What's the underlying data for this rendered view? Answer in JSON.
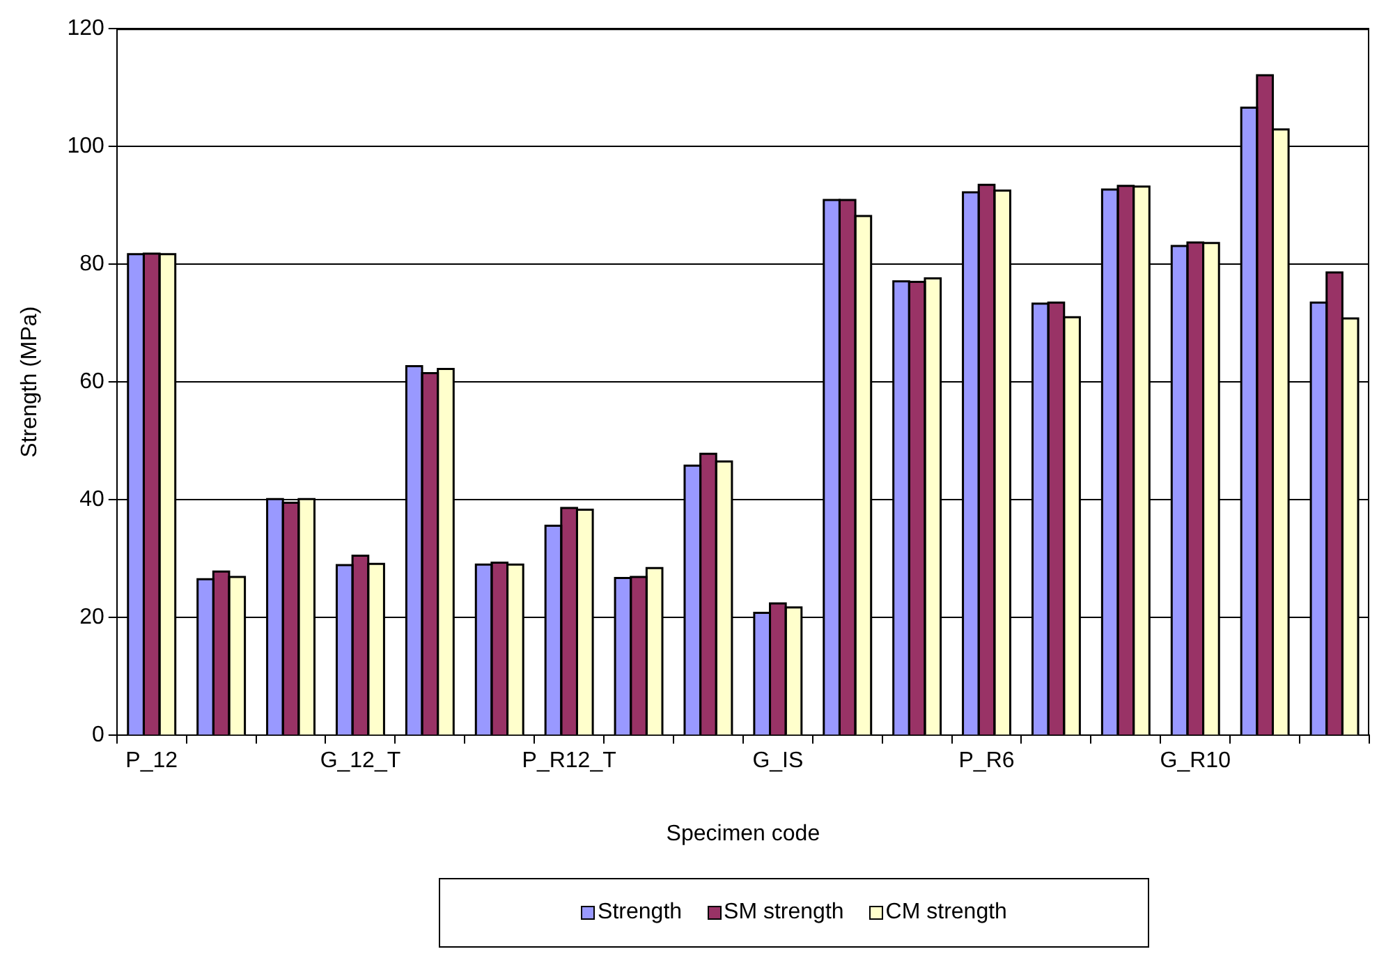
{
  "chart_data": {
    "type": "bar",
    "xlabel": "Specimen code",
    "ylabel": "Strength (MPa)",
    "categories": [
      "P_12",
      null,
      null,
      "G_12_T",
      null,
      null,
      "P_R12_T",
      null,
      null,
      "G_IS",
      null,
      null,
      "P_R6",
      null,
      null,
      "G_R10",
      null,
      null
    ],
    "series": [
      {
        "name": "Strength",
        "color": "#9999ff",
        "values": [
          81.7,
          26.5,
          40.1,
          28.9,
          62.7,
          29.0,
          35.6,
          26.7,
          45.8,
          20.8,
          90.9,
          77.1,
          92.2,
          73.3,
          92.7,
          83.1,
          106.6,
          73.5
        ]
      },
      {
        "name": "SM strength",
        "color": "#993366",
        "values": [
          81.8,
          27.8,
          39.5,
          30.5,
          61.5,
          29.3,
          38.6,
          26.9,
          47.8,
          22.4,
          90.9,
          77.0,
          93.5,
          73.5,
          93.3,
          83.7,
          112.1,
          78.6
        ]
      },
      {
        "name": "CM strength",
        "color": "#ffffcc",
        "values": [
          81.7,
          26.9,
          40.1,
          29.1,
          62.2,
          29.0,
          38.3,
          28.4,
          46.5,
          21.7,
          88.2,
          77.6,
          92.5,
          71.0,
          93.2,
          83.6,
          102.9,
          70.8
        ]
      }
    ],
    "ylim": [
      0,
      120
    ],
    "yticks": [
      0,
      20,
      40,
      60,
      80,
      100,
      120
    ],
    "grid": "y",
    "legend": "bottom"
  }
}
